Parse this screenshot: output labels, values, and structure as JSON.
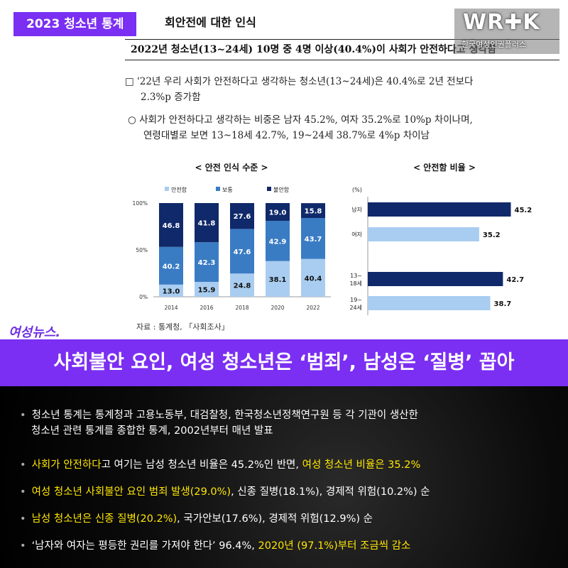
{
  "tag": "2023 청소년 통계",
  "doc_head": "회안전에 대한 인식",
  "logo": {
    "main": "WR✚K",
    "sub": "한국여성인권플러스"
  },
  "summary_box": "2022년 청소년(13~24세) 10명 중 4명 이상(40.4%)이 사회가 안전하다고 생각함",
  "bullet1": {
    "l1": "□ '22년 우리 사회가 안전하다고 생각하는 청소년(13~24세)은 40.4%로 2년 전보다",
    "l2": "2.3%p 증가함"
  },
  "bullet2": {
    "l1": "○ 사회가 안전하다고 생각하는 비중은 남자 45.2%, 여자 35.2%로 10%p 차이나며,",
    "l2": "연령대별로 보면 13~18세 42.7%, 19~24세 38.7%로 4%p 차이남"
  },
  "source": "자료 : 통계청, 「사회조사」",
  "brand": "여성뉴스.",
  "headline": "사회불안 요인, 여성 청소년은 ‘범죄’, 남성은 ‘질병’ 꼽아",
  "bottom": [
    {
      "l1": "청소년 통계는 통계청과 고용노동부, 대검찰청, 한국청소년정책연구원 등 각 기관이 생산한",
      "l2": "청소년 관련 통계를 종합한 통계, 2002년부터 매년 발표"
    },
    {
      "y1": "사회가 안전하다",
      "w1": "고 여기는 남성 청소년 비율은 45.2%인 반면, ",
      "y2": "여성 청소년 비율은 35.2%"
    },
    {
      "y1": "여성 청소년 사회불안 요인 범죄 발생(29.0%)",
      "w1": ", 신종 질병(18.1%), 경제적 위험(10.2%) 순"
    },
    {
      "y1": "남성 청소년은 신종 질병(20.2%)",
      "w1": ", 국가안보(17.6%), 경제적 위험(12.9%) 순"
    },
    {
      "w1": "‘남자와 여자는 평등한 권리를 가져야 한다’  96.4%, ",
      "y1": "2020년 (97.1%)부터 조금씩 감소"
    }
  ],
  "chart_data": [
    {
      "type": "bar",
      "stacked": true,
      "title": "< 안전 인식 수준 >",
      "categories": [
        "2014",
        "2016",
        "2018",
        "2020",
        "2022"
      ],
      "series": [
        {
          "name": "안전함",
          "values": [
            13.0,
            15.9,
            24.8,
            38.1,
            40.4
          ],
          "color": "#a9cdf0"
        },
        {
          "name": "보통",
          "values": [
            40.2,
            42.3,
            47.6,
            42.9,
            43.7
          ],
          "color": "#3a7cc4"
        },
        {
          "name": "불안함",
          "values": [
            46.8,
            41.8,
            27.6,
            19.0,
            15.8
          ],
          "color": "#10296a"
        }
      ],
      "yticks": [
        "0%",
        "50%",
        "100%"
      ],
      "ylim": [
        0,
        100
      ],
      "legend": "top"
    },
    {
      "type": "bar",
      "orientation": "horizontal",
      "title": "< 안전함 비율 >",
      "unit": "(%)",
      "categories": [
        "남자",
        "여자",
        "13~ 18세",
        "19~ 24세"
      ],
      "values": [
        45.2,
        35.2,
        42.7,
        38.7
      ],
      "colors": [
        "#10296a",
        "#a9cdf0",
        "#10296a",
        "#a9cdf0"
      ]
    }
  ]
}
